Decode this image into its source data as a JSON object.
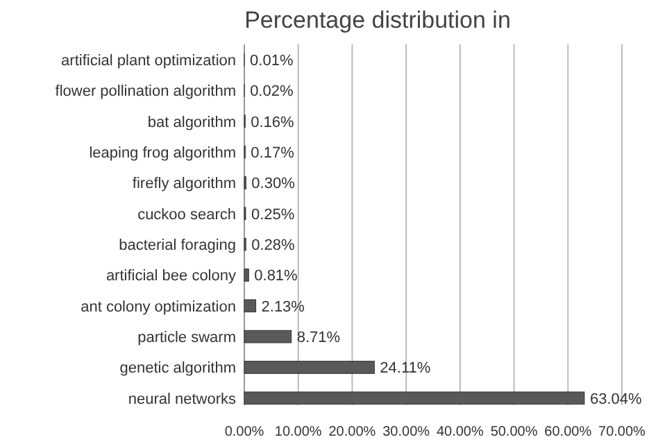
{
  "chart_data": {
    "type": "bar",
    "orientation": "horizontal",
    "title": "Percentage distribution in",
    "categories": [
      "artificial plant optimization",
      "flower pollination algorithm",
      "bat algorithm",
      "leaping frog algorithm",
      "firefly algorithm",
      "cuckoo search",
      "bacterial foraging",
      "artificial bee colony",
      "ant colony optimization",
      "particle swarm",
      "genetic algorithm",
      "neural networks"
    ],
    "values": [
      0.01,
      0.02,
      0.16,
      0.17,
      0.3,
      0.25,
      0.28,
      0.81,
      2.13,
      8.71,
      24.11,
      63.04
    ],
    "value_labels": [
      "0.01%",
      "0.02%",
      "0.16%",
      "0.17%",
      "0.30%",
      "0.25%",
      "0.28%",
      "0.81%",
      "2.13%",
      "8.71%",
      "24.11%",
      "63.04%"
    ],
    "color": "#595959",
    "xlim": [
      0,
      70
    ],
    "xticks": [
      {
        "value": 0,
        "label": "0.00%"
      },
      {
        "value": 10,
        "label": "10.00%"
      },
      {
        "value": 20,
        "label": "20.00%"
      },
      {
        "value": 30,
        "label": "30.00%"
      },
      {
        "value": 40,
        "label": "40.00%"
      },
      {
        "value": 50,
        "label": "50.00%"
      },
      {
        "value": 60,
        "label": "60.00%"
      },
      {
        "value": 70,
        "label": "70.00%"
      }
    ],
    "grid": "x"
  }
}
